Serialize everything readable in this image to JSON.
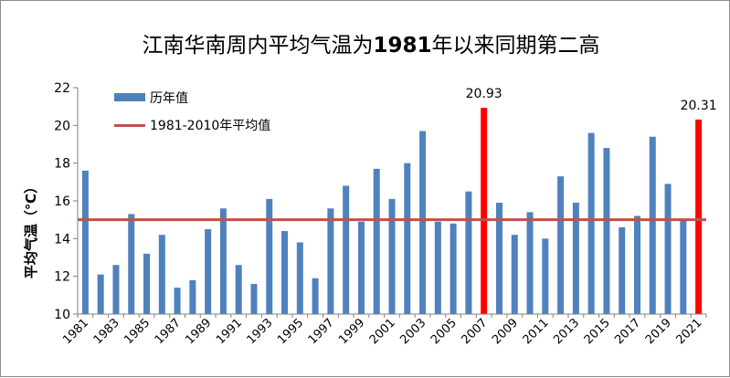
{
  "chart_data": {
    "type": "bar",
    "title": "江南华南周内平均气温为1981年以来同期第二高",
    "title_normal_part_1": "江南华南周内平均气温为",
    "title_bold_part": "1981",
    "title_normal_part_2": "年以来同期第二高",
    "ylabel": "平均气温（℃）",
    "xlabel": "",
    "ylim": [
      10,
      22
    ],
    "yticks": [
      10,
      12,
      14,
      16,
      18,
      20,
      22
    ],
    "x_tick_labels": [
      "1981",
      "1983",
      "1985",
      "1987",
      "1989",
      "1991",
      "1993",
      "1995",
      "1997",
      "1999",
      "2001",
      "2003",
      "2005",
      "2007",
      "2009",
      "2011",
      "2013",
      "2015",
      "2017",
      "2019",
      "2021"
    ],
    "categories": [
      1981,
      1982,
      1983,
      1984,
      1985,
      1986,
      1987,
      1988,
      1989,
      1990,
      1991,
      1992,
      1993,
      1994,
      1995,
      1996,
      1997,
      1998,
      1999,
      2000,
      2001,
      2002,
      2003,
      2004,
      2005,
      2006,
      2007,
      2008,
      2009,
      2010,
      2011,
      2012,
      2013,
      2014,
      2015,
      2016,
      2017,
      2018,
      2019,
      2020,
      2021
    ],
    "values": [
      17.6,
      12.1,
      12.6,
      15.3,
      13.2,
      14.2,
      11.4,
      11.8,
      14.5,
      15.6,
      12.6,
      11.6,
      16.1,
      14.4,
      13.8,
      11.9,
      15.6,
      16.8,
      14.9,
      17.7,
      16.1,
      18.0,
      19.7,
      14.9,
      14.8,
      16.5,
      20.93,
      15.9,
      14.2,
      15.4,
      14.0,
      17.3,
      15.9,
      19.6,
      18.8,
      14.6,
      15.2,
      19.4,
      16.9,
      15.0,
      20.31
    ],
    "highlight_years": [
      2007,
      2021
    ],
    "highlight_labels": [
      "20.93",
      "20.31"
    ],
    "average_value": 15.0,
    "legend": {
      "series_label": "历年值",
      "average_label": "1981-2010年平均值",
      "placement": "top-left"
    },
    "colors": {
      "bar": "#4f81bd",
      "highlight": "#ff0000",
      "average_line": "#c0504d",
      "axis": "#808080",
      "text": "#000000"
    }
  }
}
